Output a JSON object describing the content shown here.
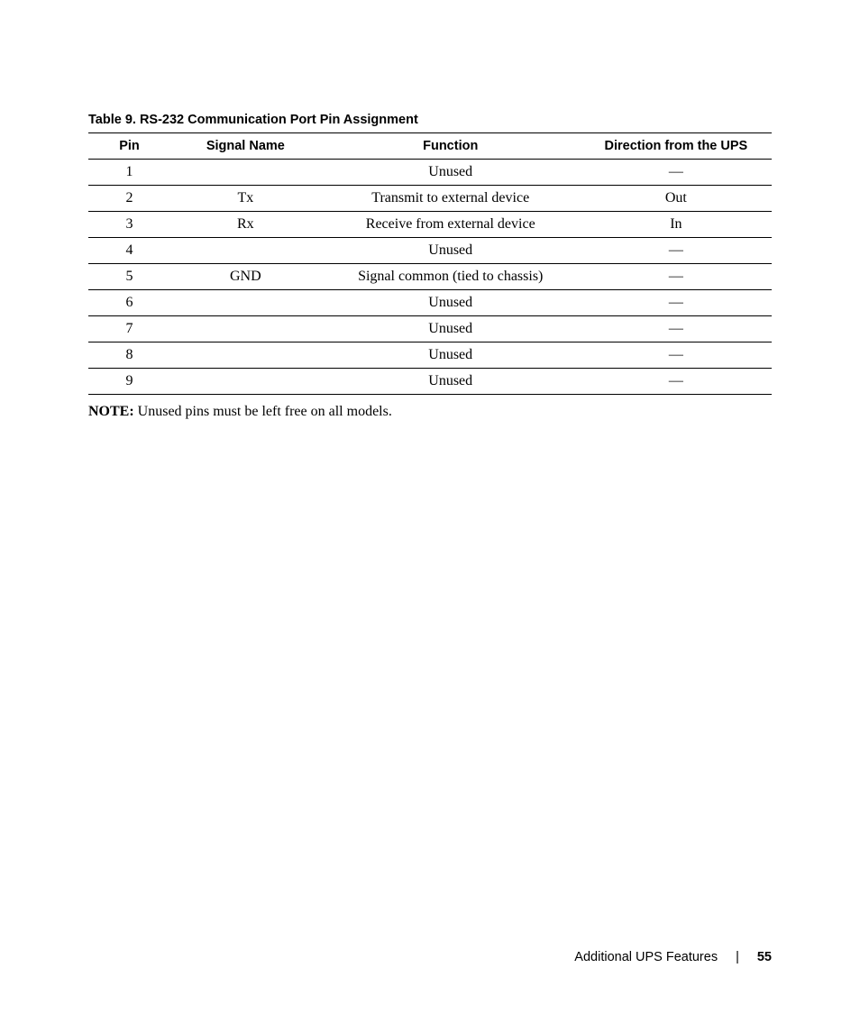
{
  "table": {
    "title": "Table 9. RS-232 Communication Port Pin Assignment",
    "columns": [
      "Pin",
      "Signal Name",
      "Function",
      "Direction from the UPS"
    ],
    "rows": [
      [
        "1",
        "",
        "Unused",
        "—"
      ],
      [
        "2",
        "Tx",
        "Transmit to external device",
        "Out"
      ],
      [
        "3",
        "Rx",
        "Receive from external device",
        "In"
      ],
      [
        "4",
        "",
        "Unused",
        "—"
      ],
      [
        "5",
        "GND",
        "Signal common (tied to chassis)",
        "—"
      ],
      [
        "6",
        "",
        "Unused",
        "—"
      ],
      [
        "7",
        "",
        "Unused",
        "—"
      ],
      [
        "8",
        "",
        "Unused",
        "—"
      ],
      [
        "9",
        "",
        "Unused",
        "—"
      ]
    ],
    "column_widths": [
      "12%",
      "22%",
      "38%",
      "28%"
    ]
  },
  "note": {
    "label": "NOTE:",
    "text": " Unused pins must be left free on all models."
  },
  "footer": {
    "section": "Additional UPS Features",
    "divider": "|",
    "page": "55"
  },
  "styles": {
    "background_color": "#ffffff",
    "text_color": "#000000",
    "border_color": "#000000",
    "header_font": "Arial, Helvetica, sans-serif",
    "body_font": "Georgia, 'Times New Roman', serif",
    "title_fontsize": 14.5,
    "header_fontsize": 14.5,
    "cell_fontsize": 16,
    "note_fontsize": 16,
    "footer_fontsize": 14.5
  }
}
